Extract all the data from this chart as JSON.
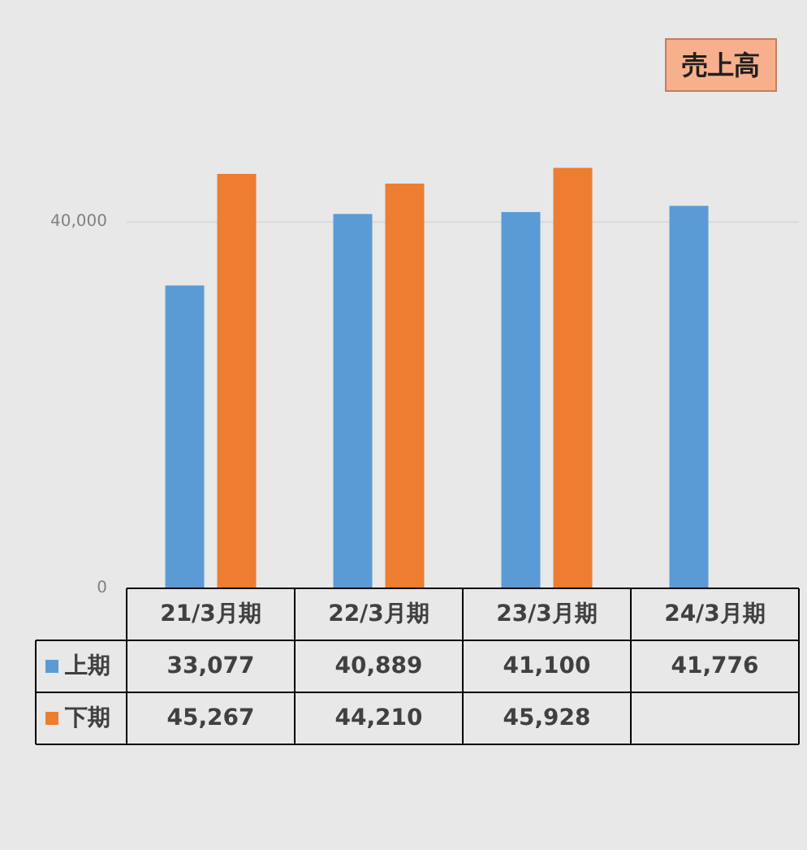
{
  "chart_data": {
    "type": "bar",
    "title": "売上高",
    "categories": [
      "21/3月期",
      "22/3月期",
      "23/3月期",
      "24/3月期"
    ],
    "series": [
      {
        "name": "上期",
        "color": "#5b9bd5",
        "values": [
          33077,
          40889,
          41100,
          41776
        ],
        "value_labels": [
          "33,077",
          "40,889",
          "41,100",
          "41,776"
        ]
      },
      {
        "name": "下期",
        "color": "#ed7d31",
        "values": [
          45267,
          44210,
          45928,
          null
        ],
        "value_labels": [
          "45,267",
          "44,210",
          "45,928",
          null
        ]
      }
    ],
    "ylim": [
      0,
      60000
    ],
    "yticks": [
      {
        "value": 0,
        "label": "0"
      },
      {
        "value": 40000,
        "label": "40,000"
      }
    ],
    "grid": "y",
    "legend": "bottom"
  }
}
